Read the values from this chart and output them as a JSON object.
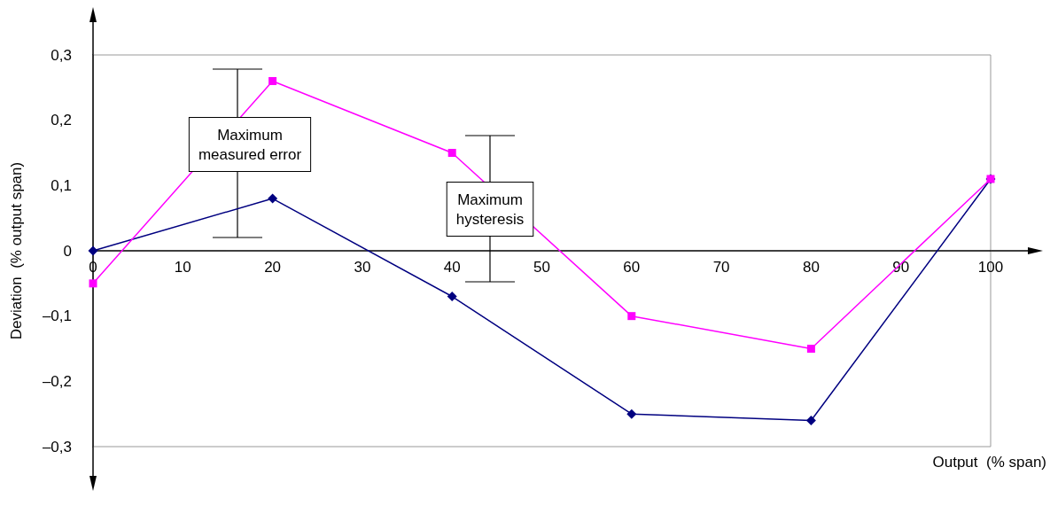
{
  "chart_data": {
    "type": "line",
    "xlabel": "Output  (% span)",
    "ylabel": "Deviation  (% output span)",
    "x": [
      0,
      20,
      40,
      60,
      80,
      100
    ],
    "series": [
      {
        "color": "#000080",
        "marker": "diamond",
        "values": [
          0,
          0.08,
          -0.07,
          -0.25,
          -0.26,
          0.11
        ]
      },
      {
        "color": "#ff00ff",
        "marker": "square",
        "values": [
          -0.05,
          0.26,
          0.15,
          -0.1,
          -0.15,
          0.11
        ]
      }
    ],
    "xlim": [
      0,
      100
    ],
    "xticks": [
      0,
      10,
      20,
      30,
      40,
      50,
      60,
      70,
      80,
      90,
      100
    ],
    "ylim": [
      -0.3,
      0.3
    ],
    "yticks": [
      {
        "value": -0.3,
        "label": "–0,3"
      },
      {
        "value": -0.2,
        "label": "–0,2"
      },
      {
        "value": -0.1,
        "label": "–0,1"
      },
      {
        "value": 0,
        "label": "0"
      },
      {
        "value": 0.1,
        "label": "0,1"
      },
      {
        "value": 0.2,
        "label": "0,2"
      },
      {
        "value": 0.3,
        "label": "0,3"
      }
    ],
    "annotations": [
      "Maximum\nmeasured error",
      "Maximum\nhysteresis"
    ],
    "grid": false
  }
}
